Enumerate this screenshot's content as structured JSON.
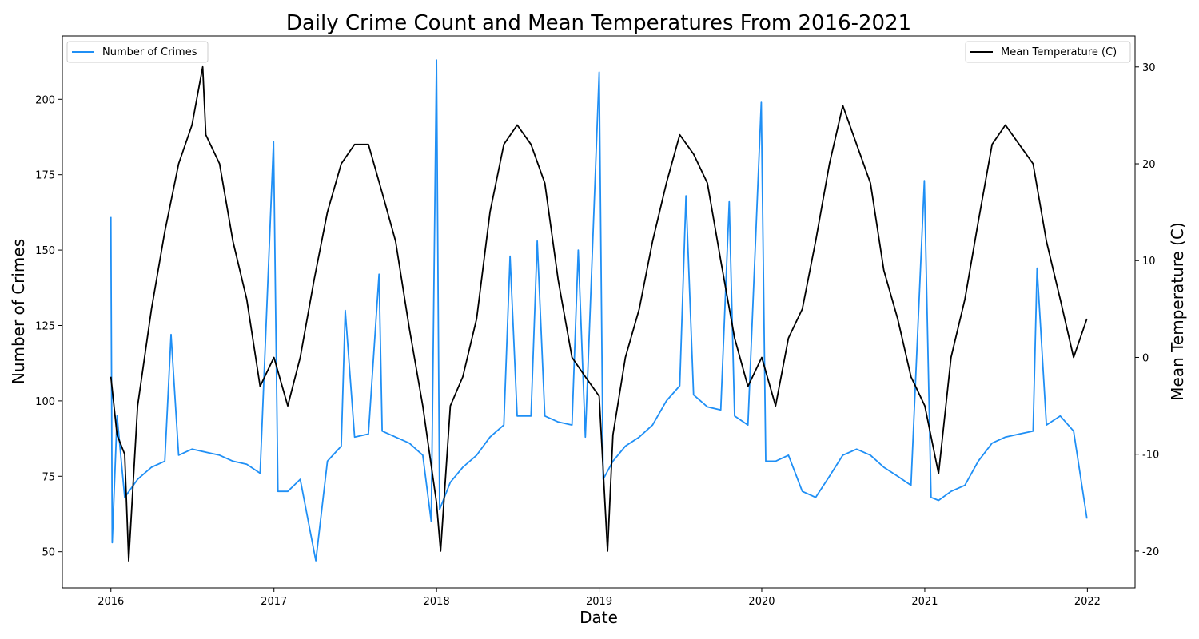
{
  "chart_data": {
    "type": "line",
    "title": "Daily Crime Count and Mean Temperatures From 2016-2021",
    "xlabel": "Date",
    "ylabel_left": "Number of Crimes",
    "ylabel_right": "Mean Temperature (C)",
    "x_range": [
      "2015-09-14",
      "2022-04-18"
    ],
    "ylim_left": [
      38,
      221
    ],
    "ylim_right": [
      -23.8,
      33.2
    ],
    "grid": false,
    "x_ticks": [
      {
        "date": "2016-01-01",
        "label": "2016"
      },
      {
        "date": "2017-01-01",
        "label": "2017"
      },
      {
        "date": "2018-01-01",
        "label": "2018"
      },
      {
        "date": "2019-01-01",
        "label": "2019"
      },
      {
        "date": "2020-01-01",
        "label": "2020"
      },
      {
        "date": "2021-01-01",
        "label": "2021"
      },
      {
        "date": "2022-01-01",
        "label": "2022"
      }
    ],
    "y_ticks_left": [
      50,
      75,
      100,
      125,
      150,
      175,
      200
    ],
    "y_ticks_right": [
      -20,
      -10,
      0,
      10,
      20,
      30
    ],
    "series": [
      {
        "name": "Number of Crimes",
        "axis": "left",
        "color": "#1f8ff5",
        "legend_position": "upper left",
        "points": [
          [
            "2016-01-01",
            161
          ],
          [
            "2016-01-04",
            53
          ],
          [
            "2016-01-15",
            95
          ],
          [
            "2016-02-01",
            68
          ],
          [
            "2016-03-01",
            74
          ],
          [
            "2016-04-01",
            78
          ],
          [
            "2016-05-01",
            80
          ],
          [
            "2016-05-15",
            122
          ],
          [
            "2016-06-01",
            82
          ],
          [
            "2016-07-01",
            84
          ],
          [
            "2016-08-01",
            83
          ],
          [
            "2016-09-01",
            82
          ],
          [
            "2016-10-01",
            80
          ],
          [
            "2016-11-01",
            79
          ],
          [
            "2016-12-01",
            76
          ],
          [
            "2016-12-31",
            186
          ],
          [
            "2017-01-10",
            70
          ],
          [
            "2017-02-01",
            70
          ],
          [
            "2017-03-01",
            74
          ],
          [
            "2017-04-05",
            47
          ],
          [
            "2017-05-01",
            80
          ],
          [
            "2017-06-01",
            85
          ],
          [
            "2017-06-10",
            130
          ],
          [
            "2017-07-01",
            88
          ],
          [
            "2017-08-01",
            89
          ],
          [
            "2017-08-25",
            142
          ],
          [
            "2017-09-01",
            90
          ],
          [
            "2017-10-01",
            88
          ],
          [
            "2017-11-01",
            86
          ],
          [
            "2017-12-01",
            82
          ],
          [
            "2017-12-20",
            60
          ],
          [
            "2018-01-01",
            213
          ],
          [
            "2018-01-08",
            64
          ],
          [
            "2018-02-01",
            73
          ],
          [
            "2018-03-01",
            78
          ],
          [
            "2018-04-01",
            82
          ],
          [
            "2018-05-01",
            88
          ],
          [
            "2018-06-01",
            92
          ],
          [
            "2018-06-15",
            148
          ],
          [
            "2018-07-01",
            95
          ],
          [
            "2018-08-01",
            95
          ],
          [
            "2018-08-15",
            153
          ],
          [
            "2018-09-01",
            95
          ],
          [
            "2018-10-01",
            93
          ],
          [
            "2018-11-01",
            92
          ],
          [
            "2018-11-15",
            150
          ],
          [
            "2018-12-01",
            88
          ],
          [
            "2019-01-01",
            209
          ],
          [
            "2019-01-10",
            74
          ],
          [
            "2019-02-01",
            80
          ],
          [
            "2019-03-01",
            85
          ],
          [
            "2019-04-01",
            88
          ],
          [
            "2019-05-01",
            92
          ],
          [
            "2019-06-01",
            100
          ],
          [
            "2019-07-01",
            105
          ],
          [
            "2019-07-15",
            168
          ],
          [
            "2019-08-01",
            102
          ],
          [
            "2019-09-01",
            98
          ],
          [
            "2019-10-01",
            97
          ],
          [
            "2019-10-20",
            166
          ],
          [
            "2019-11-01",
            95
          ],
          [
            "2019-12-01",
            92
          ],
          [
            "2019-12-31",
            199
          ],
          [
            "2020-01-10",
            80
          ],
          [
            "2020-02-01",
            80
          ],
          [
            "2020-03-01",
            82
          ],
          [
            "2020-04-01",
            70
          ],
          [
            "2020-05-01",
            68
          ],
          [
            "2020-06-01",
            75
          ],
          [
            "2020-07-01",
            82
          ],
          [
            "2020-08-01",
            84
          ],
          [
            "2020-09-01",
            82
          ],
          [
            "2020-10-01",
            78
          ],
          [
            "2020-11-01",
            75
          ],
          [
            "2020-12-01",
            72
          ],
          [
            "2020-12-31",
            173
          ],
          [
            "2021-01-15",
            68
          ],
          [
            "2021-02-01",
            67
          ],
          [
            "2021-03-01",
            70
          ],
          [
            "2021-04-01",
            72
          ],
          [
            "2021-05-01",
            80
          ],
          [
            "2021-06-01",
            86
          ],
          [
            "2021-07-01",
            88
          ],
          [
            "2021-08-01",
            89
          ],
          [
            "2021-09-01",
            90
          ],
          [
            "2021-09-10",
            144
          ],
          [
            "2021-10-01",
            92
          ],
          [
            "2021-11-01",
            95
          ],
          [
            "2021-12-01",
            90
          ],
          [
            "2021-12-31",
            61
          ]
        ]
      },
      {
        "name": "Mean Temperature (C)",
        "axis": "right",
        "color": "#000000",
        "legend_position": "upper right",
        "points": [
          [
            "2016-01-01",
            -2
          ],
          [
            "2016-01-15",
            -8
          ],
          [
            "2016-02-01",
            -10
          ],
          [
            "2016-02-10",
            -21
          ],
          [
            "2016-03-01",
            -5
          ],
          [
            "2016-04-01",
            5
          ],
          [
            "2016-05-01",
            13
          ],
          [
            "2016-06-01",
            20
          ],
          [
            "2016-07-01",
            24
          ],
          [
            "2016-07-25",
            30
          ],
          [
            "2016-08-01",
            23
          ],
          [
            "2016-09-01",
            20
          ],
          [
            "2016-10-01",
            12
          ],
          [
            "2016-11-01",
            6
          ],
          [
            "2016-12-01",
            -3
          ],
          [
            "2017-01-01",
            0
          ],
          [
            "2017-02-01",
            -5
          ],
          [
            "2017-03-01",
            0
          ],
          [
            "2017-04-01",
            8
          ],
          [
            "2017-05-01",
            15
          ],
          [
            "2017-06-01",
            20
          ],
          [
            "2017-07-01",
            22
          ],
          [
            "2017-08-01",
            22
          ],
          [
            "2017-09-01",
            17
          ],
          [
            "2017-10-01",
            12
          ],
          [
            "2017-11-01",
            3
          ],
          [
            "2017-12-01",
            -5
          ],
          [
            "2018-01-01",
            -15
          ],
          [
            "2018-01-10",
            -20
          ],
          [
            "2018-02-01",
            -5
          ],
          [
            "2018-03-01",
            -2
          ],
          [
            "2018-04-01",
            4
          ],
          [
            "2018-05-01",
            15
          ],
          [
            "2018-06-01",
            22
          ],
          [
            "2018-07-01",
            24
          ],
          [
            "2018-08-01",
            22
          ],
          [
            "2018-09-01",
            18
          ],
          [
            "2018-10-01",
            8
          ],
          [
            "2018-11-01",
            0
          ],
          [
            "2018-12-01",
            -2
          ],
          [
            "2019-01-01",
            -4
          ],
          [
            "2019-01-20",
            -20
          ],
          [
            "2019-02-01",
            -8
          ],
          [
            "2019-03-01",
            0
          ],
          [
            "2019-04-01",
            5
          ],
          [
            "2019-05-01",
            12
          ],
          [
            "2019-06-01",
            18
          ],
          [
            "2019-07-01",
            23
          ],
          [
            "2019-08-01",
            21
          ],
          [
            "2019-09-01",
            18
          ],
          [
            "2019-10-01",
            10
          ],
          [
            "2019-11-01",
            2
          ],
          [
            "2019-12-01",
            -3
          ],
          [
            "2020-01-01",
            0
          ],
          [
            "2020-02-01",
            -5
          ],
          [
            "2020-03-01",
            2
          ],
          [
            "2020-04-01",
            5
          ],
          [
            "2020-05-01",
            12
          ],
          [
            "2020-06-01",
            20
          ],
          [
            "2020-07-01",
            26
          ],
          [
            "2020-08-01",
            22
          ],
          [
            "2020-09-01",
            18
          ],
          [
            "2020-10-01",
            9
          ],
          [
            "2020-11-01",
            4
          ],
          [
            "2020-12-01",
            -2
          ],
          [
            "2021-01-01",
            -5
          ],
          [
            "2021-02-01",
            -12
          ],
          [
            "2021-03-01",
            0
          ],
          [
            "2021-04-01",
            6
          ],
          [
            "2021-05-01",
            14
          ],
          [
            "2021-06-01",
            22
          ],
          [
            "2021-07-01",
            24
          ],
          [
            "2021-08-01",
            22
          ],
          [
            "2021-09-01",
            20
          ],
          [
            "2021-10-01",
            12
          ],
          [
            "2021-11-01",
            6
          ],
          [
            "2021-12-01",
            0
          ],
          [
            "2021-12-31",
            4
          ]
        ]
      }
    ]
  }
}
